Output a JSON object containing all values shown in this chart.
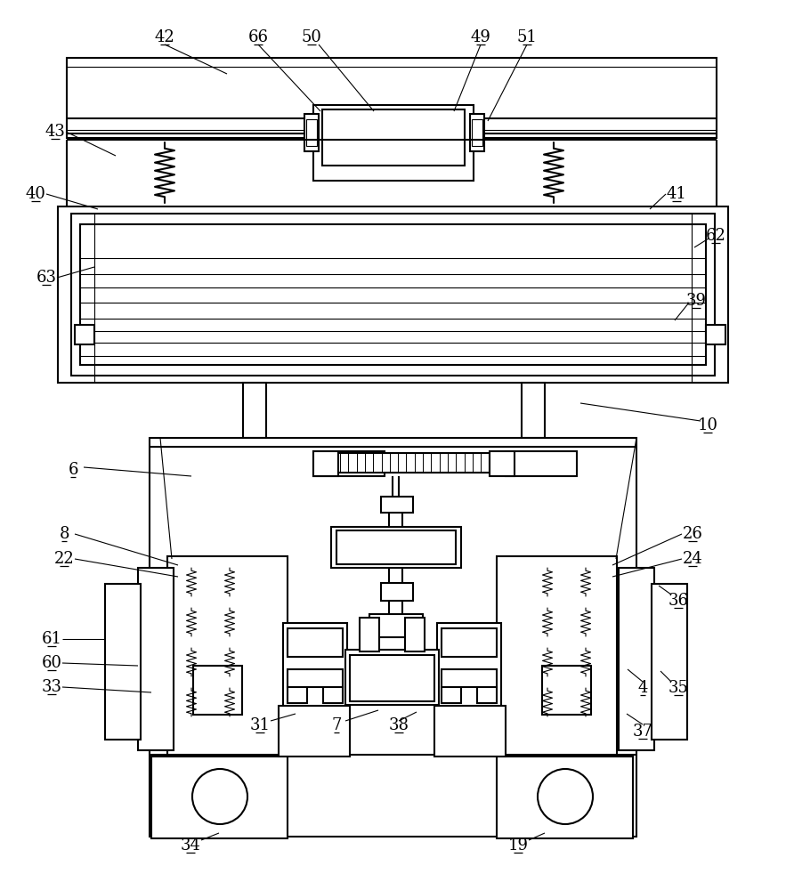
{
  "bg_color": "#ffffff",
  "lc": "#000000",
  "lw": 1.5,
  "tlw": 0.8,
  "fig_w": 8.83,
  "fig_h": 10.0
}
